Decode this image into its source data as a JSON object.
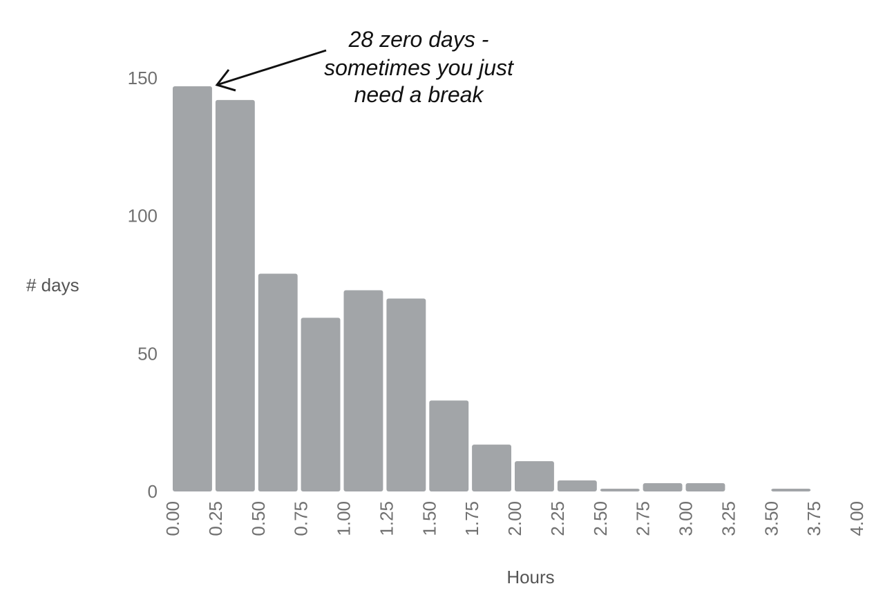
{
  "chart_data": {
    "type": "bar",
    "xlabel": "Hours",
    "ylabel": "# days",
    "x_ticks": [
      "0.00",
      "0.25",
      "0.50",
      "0.75",
      "1.00",
      "1.25",
      "1.50",
      "1.75",
      "2.00",
      "2.25",
      "2.50",
      "2.75",
      "3.00",
      "3.25",
      "3.50",
      "3.75",
      "4.00"
    ],
    "y_ticks": [
      "0",
      "50",
      "100",
      "150"
    ],
    "ylim": [
      0,
      150
    ],
    "xlim": [
      0,
      4
    ],
    "bin_width": 0.25,
    "bins": [
      {
        "start": 0.0,
        "end": 0.25,
        "value": 147
      },
      {
        "start": 0.25,
        "end": 0.5,
        "value": 142
      },
      {
        "start": 0.5,
        "end": 0.75,
        "value": 79
      },
      {
        "start": 0.75,
        "end": 1.0,
        "value": 63
      },
      {
        "start": 1.0,
        "end": 1.25,
        "value": 73
      },
      {
        "start": 1.25,
        "end": 1.5,
        "value": 70
      },
      {
        "start": 1.5,
        "end": 1.75,
        "value": 33
      },
      {
        "start": 1.75,
        "end": 2.0,
        "value": 17
      },
      {
        "start": 2.0,
        "end": 2.25,
        "value": 11
      },
      {
        "start": 2.25,
        "end": 2.5,
        "value": 4
      },
      {
        "start": 2.5,
        "end": 2.75,
        "value": 1
      },
      {
        "start": 2.75,
        "end": 3.0,
        "value": 3
      },
      {
        "start": 3.0,
        "end": 3.25,
        "value": 3
      },
      {
        "start": 3.25,
        "end": 3.5,
        "value": 0
      },
      {
        "start": 3.5,
        "end": 3.75,
        "value": 1
      }
    ],
    "grid": false,
    "bar_color": "#a2a5a8",
    "annotation": {
      "lines": [
        "28 zero days -",
        "sometimes you just",
        "need a break"
      ],
      "points_to_x": 0.25,
      "points_to_y": 147
    }
  }
}
